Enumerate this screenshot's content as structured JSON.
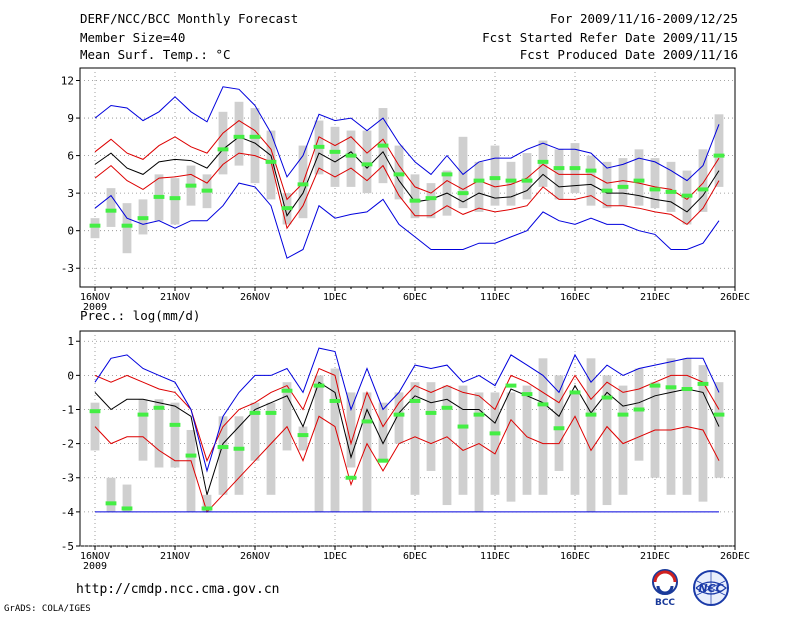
{
  "header": {
    "title": "DERF/NCC/BCC Monthly Forecast",
    "member_size": "Member Size=40",
    "panel1_variable": "Mean Surf. Temp.: °C",
    "forecast_period": "For 2009/11/16-2009/12/25",
    "refer_date": "Fcst Started Refer Date 2009/11/15",
    "produced_date": "Fcst Produced Date 2009/11/16"
  },
  "footer": {
    "url": "http://cmdp.ncc.cma.gov.cn",
    "credit": "GrADS: COLA/IGES",
    "logo_left": "BCC",
    "logo_right": "NCC"
  },
  "colors": {
    "ensemble_bar": "#cfcfcf",
    "median": "#44ee44",
    "mean": "#000000",
    "inner_band": "#dd0000",
    "outer_band": "#0000dd",
    "grid": "#888888"
  },
  "chart_data": [
    {
      "type": "line",
      "title": "Mean Surf. Temp.: °C",
      "xlabel": "",
      "ylabel": "",
      "ylim": [
        -4.5,
        13
      ],
      "yticks": [
        -3,
        0,
        3,
        6,
        9,
        12
      ],
      "ytick_labels": [
        "-3",
        "0",
        "3",
        "6",
        "9",
        "12"
      ],
      "x_day_range": [
        0,
        39
      ],
      "xticks": [
        {
          "day": 0,
          "label": "16NOV",
          "sublabel": "2009"
        },
        {
          "day": 5,
          "label": "21NOV"
        },
        {
          "day": 10,
          "label": "26NOV"
        },
        {
          "day": 15,
          "label": "1DEC"
        },
        {
          "day": 20,
          "label": "6DEC"
        },
        {
          "day": 25,
          "label": "11DEC"
        },
        {
          "day": 30,
          "label": "16DEC"
        },
        {
          "day": 35,
          "label": "21DEC"
        },
        {
          "day": 40,
          "label": "26DEC"
        }
      ],
      "grid": true,
      "bars": [
        [
          -0.6,
          1.0
        ],
        [
          0.3,
          3.4
        ],
        [
          -1.8,
          2.2
        ],
        [
          -0.3,
          2.5
        ],
        [
          0.8,
          4.5
        ],
        [
          0.5,
          4.2
        ],
        [
          2.0,
          5.2
        ],
        [
          1.8,
          4.5
        ],
        [
          4.5,
          9.5
        ],
        [
          5.2,
          10.3
        ],
        [
          3.8,
          9.8
        ],
        [
          2.5,
          8.0
        ],
        [
          0.5,
          3.0
        ],
        [
          1.0,
          6.8
        ],
        [
          4.5,
          8.8
        ],
        [
          3.5,
          8.3
        ],
        [
          3.5,
          8.0
        ],
        [
          3.0,
          8.0
        ],
        [
          3.8,
          9.8
        ],
        [
          2.5,
          6.8
        ],
        [
          1.0,
          4.5
        ],
        [
          1.0,
          3.8
        ],
        [
          1.2,
          4.8
        ],
        [
          1.8,
          7.5
        ],
        [
          1.5,
          5.5
        ],
        [
          2.0,
          6.8
        ],
        [
          2.0,
          5.5
        ],
        [
          2.5,
          6.2
        ],
        [
          3.5,
          7.2
        ],
        [
          2.5,
          6.5
        ],
        [
          3.0,
          7.0
        ],
        [
          2.0,
          6.0
        ],
        [
          1.8,
          5.5
        ],
        [
          2.0,
          5.8
        ],
        [
          2.0,
          6.5
        ],
        [
          1.8,
          5.8
        ],
        [
          1.5,
          5.5
        ],
        [
          0.5,
          4.8
        ],
        [
          1.5,
          6.5
        ],
        [
          3.5,
          9.3
        ]
      ],
      "series": [
        {
          "name": "median",
          "values": [
            0.4,
            1.6,
            0.4,
            1.0,
            2.7,
            2.6,
            3.6,
            3.2,
            6.5,
            7.5,
            7.5,
            5.5,
            1.8,
            3.7,
            6.7,
            6.3,
            6.0,
            5.3,
            6.8,
            4.5,
            2.4,
            2.6,
            4.5,
            3.0,
            4.0,
            4.2,
            4.0,
            4.0,
            5.5,
            5.0,
            5.0,
            4.8,
            3.2,
            3.5,
            4.0,
            3.3,
            3.1,
            2.8,
            3.3,
            6.0
          ]
        },
        {
          "name": "mean",
          "values": [
            5.3,
            6.2,
            5.0,
            4.5,
            5.5,
            5.7,
            5.6,
            5.0,
            6.5,
            7.5,
            7.0,
            6.0,
            1.2,
            3.0,
            6.2,
            5.5,
            6.3,
            5.0,
            6.3,
            4.0,
            2.3,
            2.5,
            3.0,
            2.3,
            3.0,
            2.6,
            2.7,
            3.2,
            4.5,
            3.5,
            3.6,
            3.7,
            3.0,
            3.0,
            2.8,
            2.5,
            2.3,
            1.5,
            2.8,
            4.8
          ]
        },
        {
          "name": "inner_upper",
          "values": [
            6.3,
            7.3,
            6.2,
            5.7,
            6.8,
            7.5,
            6.7,
            6.2,
            7.8,
            8.8,
            8.0,
            6.5,
            2.5,
            3.8,
            7.5,
            6.8,
            7.5,
            6.2,
            7.3,
            5.2,
            3.5,
            3.0,
            4.0,
            3.3,
            4.0,
            3.5,
            3.7,
            4.2,
            5.3,
            4.5,
            4.5,
            4.5,
            3.8,
            4.0,
            3.8,
            3.5,
            3.3,
            2.5,
            3.8,
            5.8
          ]
        },
        {
          "name": "inner_lower",
          "values": [
            4.2,
            5.2,
            4.0,
            3.3,
            4.2,
            4.3,
            4.5,
            3.8,
            5.3,
            6.2,
            6.0,
            5.5,
            0.2,
            2.0,
            5.0,
            4.3,
            5.0,
            4.0,
            5.2,
            2.8,
            1.2,
            1.2,
            2.0,
            1.3,
            1.8,
            1.5,
            1.7,
            2.0,
            3.5,
            2.5,
            2.5,
            2.8,
            2.0,
            2.0,
            1.8,
            1.5,
            1.3,
            0.5,
            1.8,
            4.0
          ]
        },
        {
          "name": "outer_upper",
          "values": [
            9.0,
            10.0,
            9.8,
            8.8,
            9.5,
            10.7,
            9.5,
            8.7,
            11.5,
            11.3,
            10.0,
            7.8,
            4.3,
            6.0,
            9.3,
            8.8,
            9.0,
            8.0,
            9.0,
            7.0,
            5.5,
            4.5,
            6.0,
            4.5,
            5.5,
            5.8,
            5.8,
            6.5,
            7.0,
            6.5,
            6.5,
            6.2,
            5.0,
            5.3,
            5.8,
            5.5,
            4.8,
            4.0,
            5.2,
            8.5
          ]
        },
        {
          "name": "outer_lower",
          "values": [
            1.8,
            2.8,
            1.0,
            0.5,
            0.8,
            0.2,
            0.8,
            0.8,
            2.0,
            3.8,
            3.5,
            2.0,
            -2.2,
            -1.5,
            2.0,
            1.0,
            1.3,
            1.5,
            2.5,
            0.5,
            -0.5,
            -1.5,
            -1.5,
            -1.5,
            -1.0,
            -1.0,
            -0.5,
            0.0,
            1.5,
            0.8,
            0.5,
            1.0,
            0.5,
            0.5,
            0.0,
            -0.3,
            -1.5,
            -1.5,
            -1.0,
            0.8
          ]
        }
      ]
    },
    {
      "type": "line",
      "title": "Prec.: log(mm/d)",
      "xlabel": "",
      "ylabel": "",
      "ylim": [
        -5,
        1.3
      ],
      "yticks": [
        -5,
        -4,
        -3,
        -2,
        -1,
        0,
        1
      ],
      "ytick_labels": [
        "-5",
        "-4",
        "-3",
        "-2",
        "-1",
        "0",
        "1"
      ],
      "x_day_range": [
        0,
        39
      ],
      "xticks": [
        {
          "day": 0,
          "label": "16NOV",
          "sublabel": "2009"
        },
        {
          "day": 5,
          "label": "21NOV"
        },
        {
          "day": 10,
          "label": "26NOV"
        },
        {
          "day": 15,
          "label": "1DEC"
        },
        {
          "day": 20,
          "label": "6DEC"
        },
        {
          "day": 25,
          "label": "11DEC"
        },
        {
          "day": 30,
          "label": "16DEC"
        },
        {
          "day": 35,
          "label": "21DEC"
        },
        {
          "day": 40,
          "label": "26DEC"
        }
      ],
      "grid": true,
      "bars": [
        [
          -2.2,
          -0.8
        ],
        [
          -4.0,
          -3.0
        ],
        [
          -4.0,
          -3.2
        ],
        [
          -2.5,
          -0.7
        ],
        [
          -2.7,
          -0.7
        ],
        [
          -2.7,
          -0.8
        ],
        [
          -4.0,
          -1.6
        ],
        [
          -4.0,
          -3.5
        ],
        [
          -3.5,
          -1.2
        ],
        [
          -3.5,
          -1.2
        ],
        [
          -2.5,
          -0.8
        ],
        [
          -3.5,
          -0.8
        ],
        [
          -2.2,
          -0.2
        ],
        [
          -2.2,
          -1.5
        ],
        [
          -4.0,
          0.0
        ],
        [
          -4.0,
          0.2
        ],
        [
          -2.7,
          -0.5
        ],
        [
          -4.0,
          -0.5
        ],
        [
          -2.5,
          -0.8
        ],
        [
          -2.0,
          -0.5
        ],
        [
          -3.5,
          -0.2
        ],
        [
          -2.8,
          -0.2
        ],
        [
          -3.8,
          -0.3
        ],
        [
          -3.5,
          -0.3
        ],
        [
          -4.0,
          -0.5
        ],
        [
          -3.5,
          -0.5
        ],
        [
          -3.7,
          -0.5
        ],
        [
          -3.5,
          -0.3
        ],
        [
          -3.5,
          0.5
        ],
        [
          -2.8,
          0.0
        ],
        [
          -3.5,
          -0.5
        ],
        [
          -4.0,
          0.5
        ],
        [
          -3.8,
          0.0
        ],
        [
          -3.5,
          -0.3
        ],
        [
          -2.5,
          0.2
        ],
        [
          -3.0,
          -0.2
        ],
        [
          -3.5,
          0.5
        ],
        [
          -3.5,
          0.5
        ],
        [
          -3.7,
          0.3
        ],
        [
          -3.0,
          -0.2
        ]
      ],
      "series": [
        {
          "name": "median",
          "values": [
            -1.05,
            -3.75,
            -3.9,
            -1.15,
            -0.95,
            -1.45,
            -2.35,
            -3.9,
            -2.1,
            -2.15,
            -1.1,
            -1.1,
            -0.45,
            -1.75,
            -0.3,
            -0.75,
            -3.0,
            -1.35,
            -2.5,
            -1.15,
            -0.75,
            -1.1,
            -0.95,
            -1.5,
            -1.15,
            -1.7,
            -0.3,
            -0.55,
            -0.85,
            -1.55,
            -0.5,
            -1.15,
            -0.65,
            -1.15,
            -1.0,
            -0.3,
            -0.35,
            -0.4,
            -0.25,
            -1.15
          ]
        },
        {
          "name": "mean",
          "values": [
            -0.5,
            -1.0,
            -0.7,
            -0.7,
            -0.8,
            -0.9,
            -1.2,
            -3.5,
            -2.0,
            -1.5,
            -1.0,
            -0.8,
            -0.6,
            -1.5,
            -0.2,
            -0.5,
            -2.4,
            -1.0,
            -2.0,
            -1.1,
            -0.6,
            -0.8,
            -0.7,
            -1.0,
            -1.0,
            -1.4,
            -0.4,
            -0.6,
            -0.8,
            -1.2,
            -0.3,
            -1.1,
            -0.5,
            -0.9,
            -0.8,
            -0.6,
            -0.5,
            -0.4,
            -0.5,
            -1.5
          ]
        },
        {
          "name": "inner_upper",
          "values": [
            0.0,
            -0.2,
            0.0,
            -0.2,
            -0.4,
            -0.5,
            -1.0,
            -2.5,
            -1.5,
            -1.0,
            -0.8,
            -0.5,
            -0.3,
            -1.0,
            0.2,
            0.0,
            -2.0,
            -0.5,
            -1.5,
            -0.8,
            -0.3,
            -0.5,
            -0.3,
            -0.5,
            -0.6,
            -1.0,
            0.0,
            -0.2,
            -0.5,
            -0.8,
            0.0,
            -0.7,
            -0.2,
            -0.5,
            -0.4,
            -0.2,
            0.0,
            0.0,
            -0.2,
            -1.0
          ]
        },
        {
          "name": "inner_lower",
          "values": [
            -1.5,
            -2.0,
            -1.8,
            -1.8,
            -2.2,
            -2.5,
            -2.5,
            -4.0,
            -3.5,
            -3.0,
            -2.5,
            -2.0,
            -1.5,
            -2.5,
            -1.2,
            -1.5,
            -3.2,
            -2.0,
            -2.8,
            -2.0,
            -1.8,
            -2.0,
            -1.8,
            -2.2,
            -2.0,
            -2.3,
            -1.3,
            -1.8,
            -2.0,
            -2.0,
            -1.2,
            -2.2,
            -1.5,
            -2.0,
            -1.8,
            -1.6,
            -1.6,
            -1.5,
            -1.6,
            -2.5
          ]
        },
        {
          "name": "outer_upper",
          "values": [
            -0.2,
            0.5,
            0.6,
            0.2,
            0.0,
            -0.2,
            -1.0,
            -2.8,
            -1.2,
            -0.5,
            0.0,
            0.0,
            0.2,
            -0.5,
            0.8,
            0.7,
            -1.0,
            0.2,
            -1.0,
            -0.5,
            0.3,
            0.2,
            0.3,
            -0.2,
            0.0,
            -0.3,
            0.6,
            0.3,
            0.0,
            -0.5,
            0.6,
            -0.2,
            0.3,
            0.0,
            0.2,
            0.3,
            0.4,
            0.5,
            0.5,
            -0.5
          ]
        },
        {
          "name": "outer_lower",
          "values": [
            -4.0,
            -4.0,
            -4.0,
            -4.0,
            -4.0,
            -4.0,
            -4.0,
            -4.0,
            -4.0,
            -4.0,
            -4.0,
            -4.0,
            -4.0,
            -4.0,
            -4.0,
            -4.0,
            -4.0,
            -4.0,
            -4.0,
            -4.0,
            -4.0,
            -4.0,
            -4.0,
            -4.0,
            -4.0,
            -4.0,
            -4.0,
            -4.0,
            -4.0,
            -4.0,
            -4.0,
            -4.0,
            -4.0,
            -4.0,
            -4.0,
            -4.0,
            -4.0,
            -4.0,
            -4.0,
            -4.0
          ]
        }
      ]
    }
  ]
}
